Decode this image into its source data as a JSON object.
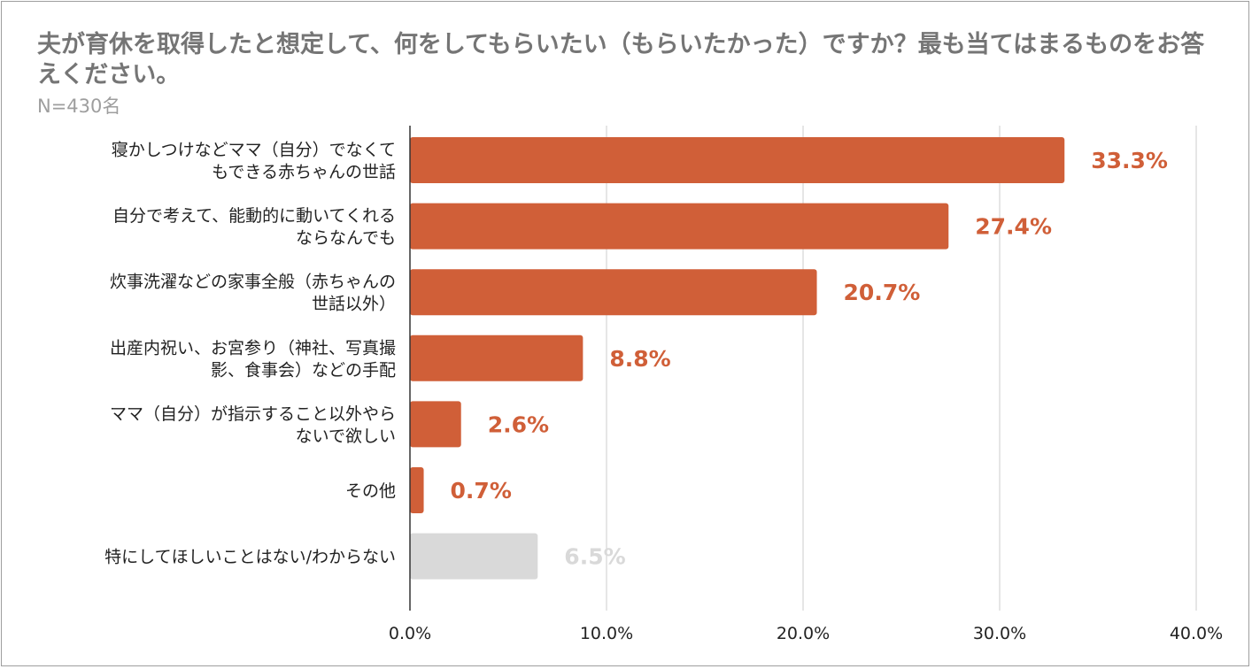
{
  "chart_data": {
    "type": "bar",
    "orientation": "horizontal",
    "title": "夫が育休を取得したと想定して、何をしてもらいたい（もらいたかった）ですか？最も当てはまるものをお答えください。",
    "subtitle": "N=430名",
    "categories": [
      [
        "寝かしつけなどママ（自分）でなくて",
        "もできる赤ちゃんの世話"
      ],
      [
        "自分で考えて、能動的に動いてくれる",
        "ならなんでも"
      ],
      [
        "炊事洗濯などの家事全般（赤ちゃんの",
        "世話以外）"
      ],
      [
        "出産内祝い、お宮参り（神社、写真撮",
        "影、食事会）などの手配"
      ],
      [
        "ママ（自分）が指示すること以外やら",
        "ないで欲しい"
      ],
      [
        "その他"
      ],
      [
        "特にしてほしいことはない/わからない"
      ]
    ],
    "values": [
      33.3,
      27.4,
      20.7,
      8.8,
      2.6,
      0.7,
      6.5
    ],
    "value_labels": [
      "33.3%",
      "27.4%",
      "20.7%",
      "8.8%",
      "2.6%",
      "0.7%",
      "6.5%"
    ],
    "bar_colors": [
      "#d05f38",
      "#d05f38",
      "#d05f38",
      "#d05f38",
      "#d05f38",
      "#d05f38",
      "#d9d9d9"
    ],
    "label_colors": [
      "#d05f38",
      "#d05f38",
      "#d05f38",
      "#d05f38",
      "#d05f38",
      "#d05f38",
      "#d9d9d9"
    ],
    "xlim": [
      0,
      40
    ],
    "xticks": [
      0,
      10,
      20,
      30,
      40
    ],
    "xtick_labels": [
      "0.0%",
      "10.0%",
      "20.0%",
      "30.0%",
      "40.0%"
    ],
    "grid": true,
    "xlabel": "",
    "ylabel": ""
  }
}
